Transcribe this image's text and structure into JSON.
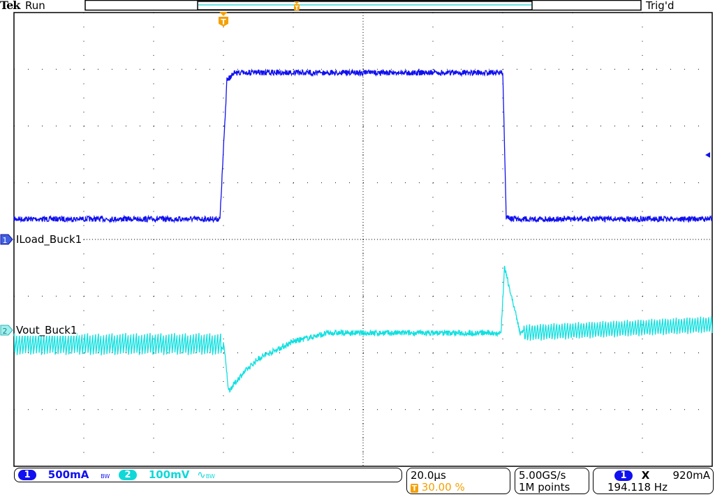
{
  "header": {
    "brand": "Tek",
    "run_state": "Run",
    "trigger_status": "Trig'd"
  },
  "colors": {
    "ch1": "#1010f0",
    "ch2": "#10e0e0",
    "trigger": "#f5a000",
    "grid": "#000000"
  },
  "channels": [
    {
      "number": "1",
      "label": "ILoad_Buck1",
      "scale": "500mA",
      "bw_icon": "bandwidth-limit-icon",
      "bw_text": "BW"
    },
    {
      "number": "2",
      "label": "Vout_Buck1",
      "scale": "100mV",
      "coupling_icon": "ac-coupling-icon",
      "bw_text": "BW"
    }
  ],
  "timebase": {
    "scale": "20.0µs",
    "trigger_position": "30.00 %",
    "trigger_icon": "T"
  },
  "acquisition": {
    "sample_rate": "5.00GS/s",
    "record_length": "1M points"
  },
  "trigger": {
    "source": "1",
    "slope_icon": "trigger-slope-icon",
    "slope_glyph": "X",
    "level": "920mA",
    "frequency": "194.118 Hz"
  },
  "chart_data": {
    "type": "line",
    "xlabel": "",
    "ylabel": "",
    "x_units": "µs",
    "x_per_div": 20,
    "x_divs": 10,
    "xlim": [
      -60,
      140
    ],
    "grid": true,
    "series": [
      {
        "name": "ILoad_Buck1",
        "units": "mA",
        "per_div": 500,
        "points": [
          [
            -60,
            180
          ],
          [
            -1,
            180
          ],
          [
            1,
            1400
          ],
          [
            3,
            1470
          ],
          [
            79,
            1470
          ],
          [
            80,
            1470
          ],
          [
            81,
            200
          ],
          [
            82,
            180
          ],
          [
            140,
            180
          ]
        ]
      },
      {
        "name": "Vout_Buck1",
        "units": "mV",
        "per_div": 100,
        "points": [
          [
            -60,
            10
          ],
          [
            -0.5,
            10
          ],
          [
            1.5,
            -107
          ],
          [
            5,
            -80
          ],
          [
            10,
            -50
          ],
          [
            20,
            -20
          ],
          [
            30,
            -5
          ],
          [
            79.5,
            -5
          ],
          [
            80.5,
            111
          ],
          [
            85,
            -5
          ],
          [
            140,
            10
          ]
        ]
      }
    ]
  }
}
